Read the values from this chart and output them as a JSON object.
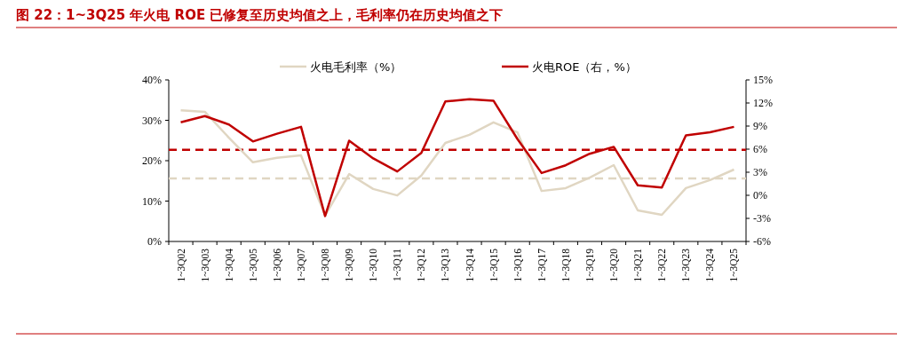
{
  "chart_data": {
    "type": "line",
    "title": "图 22：1~3Q25 年火电 ROE 已修复至历史均值之上，毛利率仍在历史均值之下",
    "categories": [
      "1~3Q02",
      "1~3Q03",
      "1~3Q04",
      "1~3Q05",
      "1~3Q06",
      "1~3Q07",
      "1~3Q08",
      "1~3Q09",
      "1~3Q10",
      "1~3Q11",
      "1~3Q12",
      "1~3Q13",
      "1~3Q14",
      "1~3Q15",
      "1~3Q16",
      "1~3Q17",
      "1~3Q18",
      "1~3Q19",
      "1~3Q20",
      "1~3Q21",
      "1~3Q22",
      "1~3Q23",
      "1~3Q24",
      "1~3Q25"
    ],
    "series": [
      {
        "name": "火电毛利率（%）",
        "color": "#e0d6c2",
        "values": [
          32.5,
          32.1,
          25.7,
          19.6,
          20.7,
          21.3,
          6.4,
          16.7,
          13,
          11.4,
          16.3,
          24.4,
          26.4,
          29.5,
          27,
          12.5,
          13.2,
          15.8,
          18.9,
          7.7,
          6.6,
          13.2,
          15.2,
          17.8
        ]
      },
      {
        "name": "火电ROE（右，%）",
        "color": "#c00000",
        "axis": "y2",
        "values": [
          9.5,
          10.3,
          9.2,
          7.0,
          8.0,
          8.9,
          -2.7,
          7.1,
          4.8,
          3.1,
          5.5,
          12.2,
          12.5,
          12.3,
          7.3,
          2.9,
          3.9,
          5.4,
          6.3,
          1.3,
          1.0,
          7.8,
          8.2,
          8.9
        ]
      }
    ],
    "ylim": [
      0,
      40
    ],
    "yticks": [
      {
        "value": 0,
        "label": "0%"
      },
      {
        "value": 10,
        "label": "10%"
      },
      {
        "value": 20,
        "label": "20%"
      },
      {
        "value": 30,
        "label": "30%"
      },
      {
        "value": 40,
        "label": "40%"
      }
    ],
    "y2lim": [
      -6,
      15
    ],
    "y2ticks": [
      {
        "value": -6,
        "label": "-6%"
      },
      {
        "value": -3,
        "label": "-3%"
      },
      {
        "value": 0,
        "label": "0%"
      },
      {
        "value": 3,
        "label": "3%"
      },
      {
        "value": 6,
        "label": "6%"
      },
      {
        "value": 9,
        "label": "9%"
      },
      {
        "value": 12,
        "label": "12%"
      },
      {
        "value": 15,
        "label": "15%"
      }
    ],
    "ref_lines": [
      {
        "axis": "y",
        "value": 15.6,
        "color": "#e0d6c2",
        "line_style": "dashed"
      },
      {
        "axis": "y2",
        "value": 5.9,
        "color": "#c00000",
        "line_style": "dashed"
      }
    ],
    "legend": "top",
    "grid": false,
    "marker": "none",
    "line_style": "solid"
  }
}
